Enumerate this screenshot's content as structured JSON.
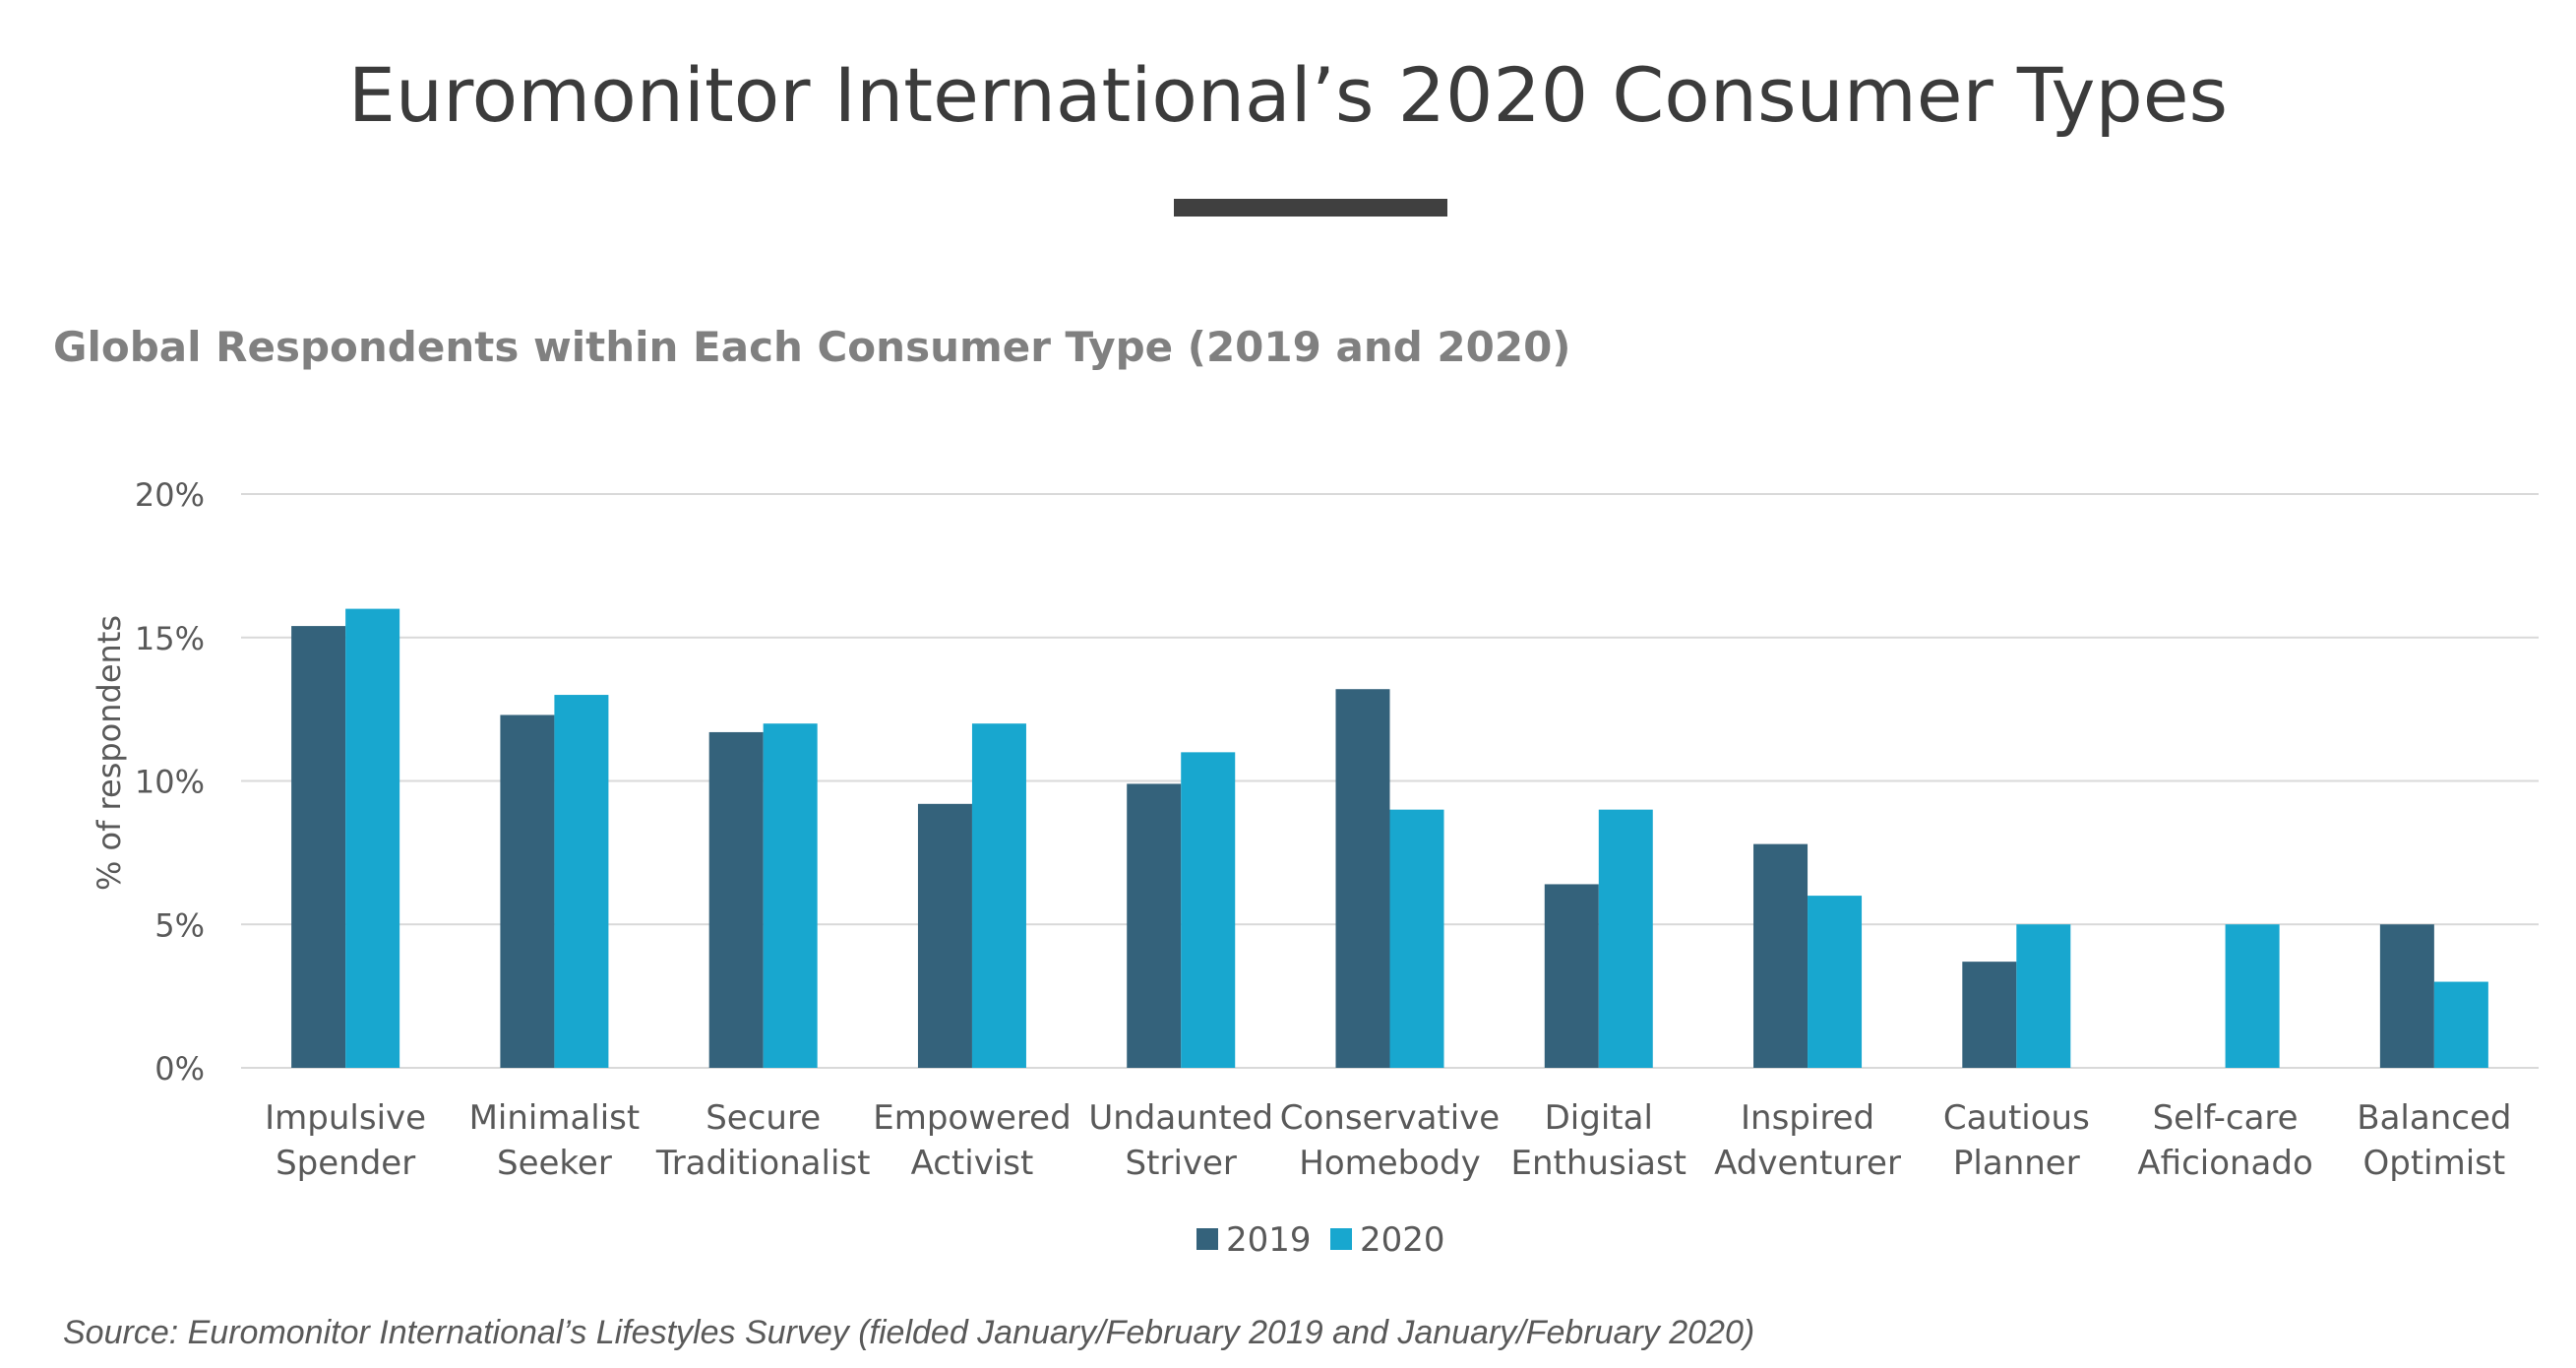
{
  "page": {
    "title": "Euromonitor International’s 2020 Consumer Types",
    "source": "Source: Euromonitor International’s Lifestyles Survey (fielded January/February 2019 and January/February 2020)"
  },
  "colors": {
    "series_2019": "#34627b",
    "series_2020": "#18a7cf",
    "grid": "#d9d9d9",
    "text": "#595959"
  },
  "chart_data": {
    "type": "bar",
    "title": "Global Respondents within Each Consumer Type (2019 and 2020)",
    "ylabel": "% of respondents",
    "xlabel": "",
    "ylim": [
      0,
      20
    ],
    "yticks": [
      "0%",
      "5%",
      "10%",
      "15%",
      "20%"
    ],
    "grid": true,
    "legend_position": "bottom",
    "categories": [
      [
        "Impulsive",
        "Spender"
      ],
      [
        "Minimalist",
        "Seeker"
      ],
      [
        "Secure",
        "Traditionalist"
      ],
      [
        "Empowered",
        "Activist"
      ],
      [
        "Undaunted",
        "Striver"
      ],
      [
        "Conservative",
        "Homebody"
      ],
      [
        "Digital",
        "Enthusiast"
      ],
      [
        "Inspired",
        "Adventurer"
      ],
      [
        "Cautious",
        "Planner"
      ],
      [
        "Self-care",
        "Aficionado"
      ],
      [
        "Balanced",
        "Optimist"
      ]
    ],
    "series": [
      {
        "name": "2019",
        "values": [
          15.4,
          12.3,
          11.7,
          9.2,
          9.9,
          13.2,
          6.4,
          7.8,
          3.7,
          null,
          5.0
        ]
      },
      {
        "name": "2020",
        "values": [
          16.0,
          13.0,
          12.0,
          12.0,
          11.0,
          9.0,
          9.0,
          6.0,
          5.0,
          5.0,
          3.0
        ]
      }
    ]
  }
}
